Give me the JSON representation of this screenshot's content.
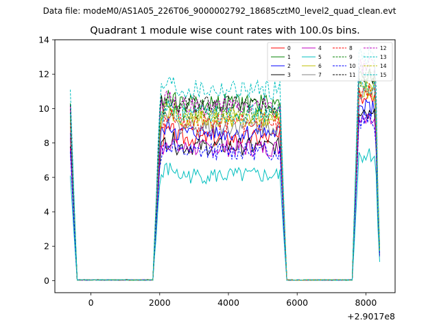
{
  "chart_data": {
    "type": "line",
    "suptitle": "Data file: modeM0/AS1A05_226T06_9000002792_18685cztM0_level2_quad_clean.evt",
    "title": "Quadrant 1 module wise count rates with 100.0s bins.",
    "xlabel": "",
    "ylabel": "",
    "x_offset_label": "+2.9017e8",
    "xlim": [
      -1050,
      8850
    ],
    "ylim": [
      -0.7,
      14
    ],
    "xticks": [
      0,
      2000,
      4000,
      6000,
      8000
    ],
    "xtick_labels": [
      "0",
      "2000",
      "4000",
      "6000",
      "8000"
    ],
    "yticks": [
      0,
      2,
      4,
      6,
      8,
      10,
      12,
      14
    ],
    "ytick_labels": [
      "0",
      "2",
      "4",
      "6",
      "8",
      "10",
      "12",
      "14"
    ],
    "legend_position": "top-right",
    "series": [
      {
        "name": "0",
        "color": "#ff0000",
        "dash": "solid",
        "level": 8.3,
        "late": 10.5
      },
      {
        "name": "1",
        "color": "#008000",
        "dash": "solid",
        "level": 10.3,
        "late": 11.9
      },
      {
        "name": "2",
        "color": "#0000ff",
        "dash": "solid",
        "level": 8.6,
        "late": 10.0
      },
      {
        "name": "3",
        "color": "#000000",
        "dash": "solid",
        "level": 7.8,
        "late": 9.5
      },
      {
        "name": "4",
        "color": "#bf00bf",
        "dash": "solid",
        "level": 7.7,
        "late": 9.2
      },
      {
        "name": "5",
        "color": "#00bfbf",
        "dash": "solid",
        "level": 6.1,
        "late": 7.3
      },
      {
        "name": "6",
        "color": "#bfbf00",
        "dash": "solid",
        "level": 9.4,
        "late": 11.0
      },
      {
        "name": "7",
        "color": "#808080",
        "dash": "solid",
        "level": 9.0,
        "late": 10.8
      },
      {
        "name": "8",
        "color": "#ff0000",
        "dash": "dashed",
        "level": 9.2,
        "late": 11.0
      },
      {
        "name": "9",
        "color": "#008000",
        "dash": "dashed",
        "level": 9.8,
        "late": 11.7
      },
      {
        "name": "10",
        "color": "#0000ff",
        "dash": "dashed",
        "level": 7.5,
        "late": 9.3
      },
      {
        "name": "11",
        "color": "#000000",
        "dash": "dashed",
        "level": 10.2,
        "late": 12.0
      },
      {
        "name": "12",
        "color": "#bf00bf",
        "dash": "dashed",
        "level": 10.1,
        "late": 12.4
      },
      {
        "name": "13",
        "color": "#00bfbf",
        "dash": "dashed",
        "level": 11.1,
        "late": 13.1
      },
      {
        "name": "14",
        "color": "#bfbf00",
        "dash": "dashed",
        "level": 9.5,
        "late": 11.3
      },
      {
        "name": "15",
        "color": "#00bfbf",
        "dash": "dashed",
        "level": 9.7,
        "late": 11.4
      }
    ],
    "segments": [
      {
        "start": -600,
        "end": -400,
        "shape": "ramp_down"
      },
      {
        "start": -400,
        "end": 1800,
        "shape": "zero"
      },
      {
        "start": 1800,
        "end": 5500,
        "shape": "plateau"
      },
      {
        "start": 5500,
        "end": 5700,
        "shape": "ramp_down"
      },
      {
        "start": 5700,
        "end": 7600,
        "shape": "zero"
      },
      {
        "start": 7600,
        "end": 8400,
        "shape": "plateau_late"
      }
    ]
  }
}
